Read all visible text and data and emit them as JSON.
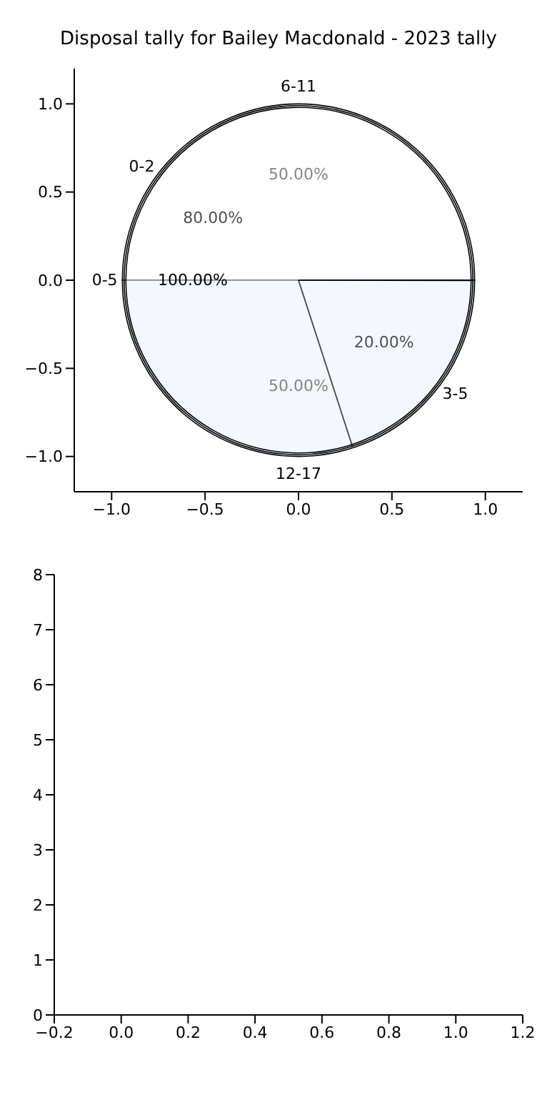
{
  "chart_data": [
    {
      "type": "scatter",
      "title": "Disposal tally for Bailey Macdonald - 2023 tally",
      "xlim": [
        -1.2,
        1.2
      ],
      "ylim": [
        -1.2,
        1.2
      ],
      "xticks": [
        {
          "value": -1,
          "label": "−1.0"
        },
        {
          "value": -0.5,
          "label": "−0.5"
        },
        {
          "value": 0,
          "label": "0.0"
        },
        {
          "value": 0.5,
          "label": "0.5"
        },
        {
          "value": 1,
          "label": "1.0"
        }
      ],
      "yticks": [
        {
          "value": -1,
          "label": "−1.0"
        },
        {
          "value": -0.5,
          "label": "−0.5"
        },
        {
          "value": 0,
          "label": "0.0"
        },
        {
          "value": 0.5,
          "label": "0.5"
        },
        {
          "value": 1,
          "label": "1.0"
        }
      ]
    },
    {
      "type": "pie",
      "categories": [
        "6-11",
        "12-17"
      ],
      "values": [
        50,
        50
      ],
      "colors": [
        "#ffffff",
        "#eaf0fc"
      ],
      "value_labels": [
        "50.00%",
        "50.00%"
      ]
    },
    {
      "type": "pie",
      "categories": [
        "0-2",
        "3-5"
      ],
      "values": [
        80,
        20
      ],
      "colors": [
        "#ffffff",
        "#ffffff"
      ],
      "value_labels": [
        "80.00%",
        "20.00%"
      ]
    },
    {
      "type": "pie",
      "categories": [
        "0-5"
      ],
      "values": [
        100
      ],
      "colors": [
        "#ffffff"
      ],
      "value_labels": [
        "100.00%"
      ]
    },
    {
      "type": "scatter",
      "xlim": [
        -0.2,
        1.2
      ],
      "ylim": [
        0,
        8
      ],
      "xticks": [
        {
          "value": -0.2,
          "label": "−0.2"
        },
        {
          "value": 0,
          "label": "0.0"
        },
        {
          "value": 0.2,
          "label": "0.2"
        },
        {
          "value": 0.4,
          "label": "0.4"
        },
        {
          "value": 0.6,
          "label": "0.6"
        },
        {
          "value": 0.8,
          "label": "0.8"
        },
        {
          "value": 1,
          "label": "1.0"
        },
        {
          "value": 1.2,
          "label": "1.2"
        }
      ],
      "yticks": [
        0,
        1,
        2,
        3,
        4,
        5,
        6,
        7,
        8
      ]
    }
  ]
}
